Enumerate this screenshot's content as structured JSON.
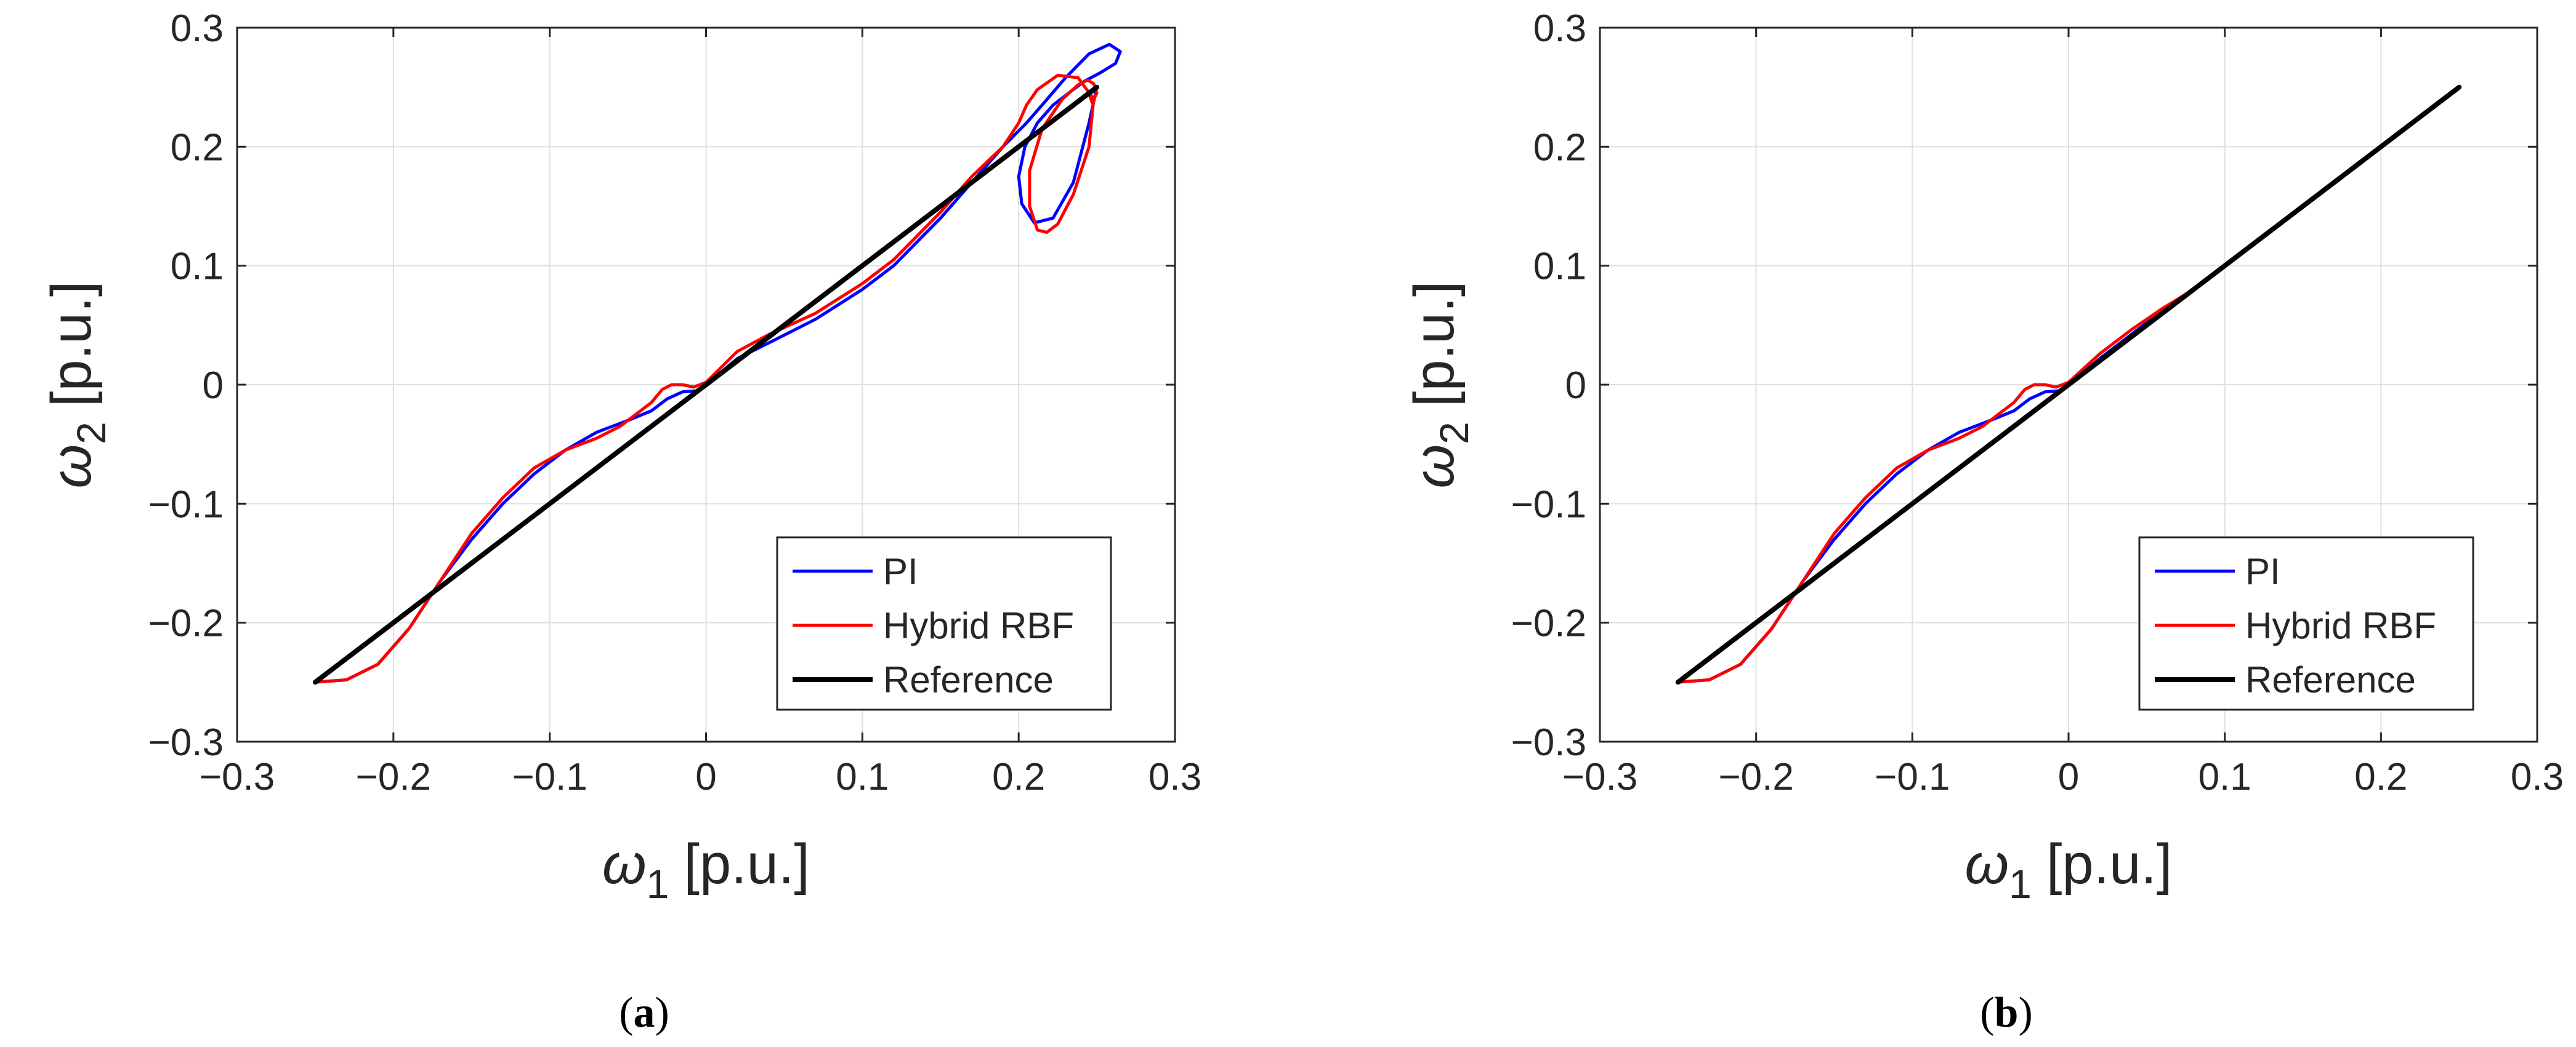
{
  "chart_data": [
    {
      "type": "line",
      "panel": "a",
      "caption_letter": "a",
      "xlabel": "ω",
      "xlabel_sub": "1",
      "xlabel_unit": "[p.u.]",
      "ylabel": "ω",
      "ylabel_sub": "2",
      "ylabel_unit": "[p.u.]",
      "xlim": [
        -0.3,
        0.3
      ],
      "ylim": [
        -0.3,
        0.3
      ],
      "xticks": [
        -0.3,
        -0.2,
        -0.1,
        0,
        0.1,
        0.2,
        0.3
      ],
      "yticks": [
        -0.3,
        -0.2,
        -0.1,
        0,
        0.1,
        0.2,
        0.3
      ],
      "xtick_labels": [
        "−0.3",
        "−0.2",
        "−0.1",
        "0",
        "0.1",
        "0.2",
        "0.3"
      ],
      "ytick_labels": [
        "−0.3",
        "−0.2",
        "−0.1",
        "0",
        "0.1",
        "0.2",
        "0.3"
      ],
      "grid": true,
      "legend_position": "bottom-right",
      "series": [
        {
          "name": "PI",
          "color": "#0000ff",
          "x": [
            -0.25,
            -0.23,
            -0.21,
            -0.19,
            -0.17,
            -0.15,
            -0.13,
            -0.11,
            -0.09,
            -0.07,
            -0.05,
            -0.035,
            -0.025,
            -0.015,
            -0.005,
            0.0,
            0.02,
            0.04,
            0.07,
            0.1,
            0.12,
            0.15,
            0.17,
            0.19,
            0.205,
            0.215,
            0.23,
            0.245,
            0.258,
            0.265,
            0.262,
            0.252,
            0.242,
            0.232,
            0.222,
            0.212,
            0.204,
            0.2,
            0.202,
            0.21,
            0.222,
            0.235,
            0.245,
            0.25
          ],
          "y": [
            -0.25,
            -0.248,
            -0.235,
            -0.205,
            -0.165,
            -0.13,
            -0.1,
            -0.075,
            -0.055,
            -0.04,
            -0.03,
            -0.022,
            -0.012,
            -0.006,
            -0.005,
            0.0,
            0.022,
            0.035,
            0.055,
            0.08,
            0.1,
            0.14,
            0.17,
            0.2,
            0.22,
            0.235,
            0.258,
            0.278,
            0.286,
            0.28,
            0.27,
            0.262,
            0.255,
            0.245,
            0.235,
            0.22,
            0.2,
            0.175,
            0.152,
            0.136,
            0.14,
            0.17,
            0.22,
            0.25
          ]
        },
        {
          "name": "Hybrid RBF",
          "color": "#ff0000",
          "x": [
            -0.25,
            -0.23,
            -0.21,
            -0.19,
            -0.17,
            -0.15,
            -0.13,
            -0.11,
            -0.09,
            -0.07,
            -0.055,
            -0.045,
            -0.035,
            -0.028,
            -0.022,
            -0.015,
            -0.008,
            0.0,
            0.02,
            0.04,
            0.07,
            0.1,
            0.12,
            0.15,
            0.17,
            0.19,
            0.2,
            0.205,
            0.212,
            0.225,
            0.238,
            0.248,
            0.245,
            0.235,
            0.225,
            0.218,
            0.212,
            0.207,
            0.207,
            0.215,
            0.228,
            0.238,
            0.244,
            0.248,
            0.25,
            0.247,
            0.245,
            0.25
          ],
          "y": [
            -0.25,
            -0.248,
            -0.235,
            -0.205,
            -0.165,
            -0.125,
            -0.095,
            -0.07,
            -0.055,
            -0.045,
            -0.035,
            -0.025,
            -0.015,
            -0.004,
            0.0,
            0.0,
            -0.002,
            0.002,
            0.028,
            0.042,
            0.06,
            0.085,
            0.105,
            0.145,
            0.175,
            0.2,
            0.22,
            0.235,
            0.248,
            0.26,
            0.258,
            0.24,
            0.2,
            0.16,
            0.135,
            0.128,
            0.13,
            0.15,
            0.18,
            0.215,
            0.24,
            0.252,
            0.256,
            0.253,
            0.245,
            0.237,
            0.245,
            0.25
          ]
        },
        {
          "name": "Reference",
          "color": "#000000",
          "x": [
            -0.25,
            0.25
          ],
          "y": [
            -0.25,
            0.25
          ]
        }
      ]
    },
    {
      "type": "line",
      "panel": "b",
      "caption_letter": "b",
      "xlabel": "ω",
      "xlabel_sub": "1",
      "xlabel_unit": "[p.u.]",
      "ylabel": "ω",
      "ylabel_sub": "2",
      "ylabel_unit": "[p.u.]",
      "xlim": [
        -0.3,
        0.3
      ],
      "ylim": [
        -0.3,
        0.3
      ],
      "xticks": [
        -0.3,
        -0.2,
        -0.1,
        0,
        0.1,
        0.2,
        0.3
      ],
      "yticks": [
        -0.3,
        -0.2,
        -0.1,
        0,
        0.1,
        0.2,
        0.3
      ],
      "xtick_labels": [
        "−0.3",
        "−0.2",
        "−0.1",
        "0",
        "0.1",
        "0.2",
        "0.3"
      ],
      "ytick_labels": [
        "−0.3",
        "−0.2",
        "−0.1",
        "0",
        "0.1",
        "0.2",
        "0.3"
      ],
      "grid": true,
      "legend_position": "bottom-right",
      "series": [
        {
          "name": "PI",
          "color": "#0000ff",
          "x": [
            -0.25,
            -0.23,
            -0.21,
            -0.19,
            -0.17,
            -0.15,
            -0.13,
            -0.11,
            -0.09,
            -0.07,
            -0.05,
            -0.035,
            -0.025,
            -0.015,
            -0.005,
            0.0,
            0.02,
            0.04,
            0.06,
            0.08
          ],
          "y": [
            -0.25,
            -0.248,
            -0.235,
            -0.205,
            -0.165,
            -0.13,
            -0.1,
            -0.075,
            -0.055,
            -0.04,
            -0.03,
            -0.022,
            -0.012,
            -0.006,
            -0.005,
            0.0,
            0.022,
            0.042,
            0.062,
            0.08
          ]
        },
        {
          "name": "Hybrid RBF",
          "color": "#ff0000",
          "x": [
            -0.25,
            -0.23,
            -0.21,
            -0.19,
            -0.17,
            -0.15,
            -0.13,
            -0.11,
            -0.09,
            -0.07,
            -0.055,
            -0.045,
            -0.035,
            -0.028,
            -0.022,
            -0.015,
            -0.008,
            0.0,
            0.02,
            0.04,
            0.06,
            0.08
          ],
          "y": [
            -0.25,
            -0.248,
            -0.235,
            -0.205,
            -0.165,
            -0.125,
            -0.095,
            -0.07,
            -0.055,
            -0.045,
            -0.035,
            -0.025,
            -0.015,
            -0.004,
            0.0,
            0.0,
            -0.002,
            0.002,
            0.026,
            0.046,
            0.064,
            0.08
          ]
        },
        {
          "name": "Reference",
          "color": "#000000",
          "x": [
            -0.25,
            0.25
          ],
          "y": [
            -0.25,
            0.25
          ]
        }
      ]
    }
  ]
}
